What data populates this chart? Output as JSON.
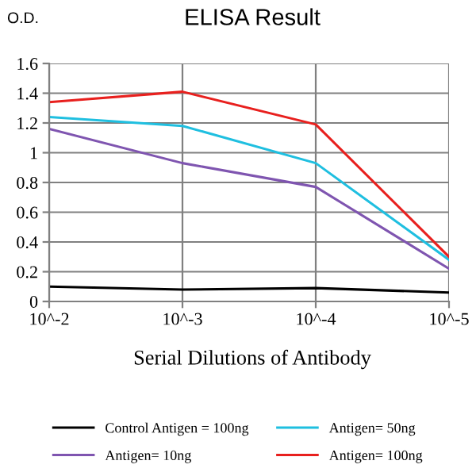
{
  "chart_data": {
    "type": "line",
    "title": "ELISA Result",
    "ylabel": "O.D.",
    "xlabel": "Serial Dilutions of Antibody",
    "categories": [
      "10^-2",
      "10^-3",
      "10^-4",
      "10^-5"
    ],
    "series": [
      {
        "name": "Control Antigen = 100ng",
        "color": "#000000",
        "values": [
          0.1,
          0.08,
          0.09,
          0.06
        ]
      },
      {
        "name": "Antigen= 10ng",
        "color": "#7f55b0",
        "values": [
          1.16,
          0.93,
          0.77,
          0.22
        ]
      },
      {
        "name": "Antigen= 50ng",
        "color": "#1fbfe0",
        "values": [
          1.24,
          1.18,
          0.93,
          0.28
        ]
      },
      {
        "name": "Antigen= 100ng",
        "color": "#e8201e",
        "values": [
          1.34,
          1.41,
          1.19,
          0.3
        ]
      }
    ],
    "ylim": [
      0,
      1.6
    ],
    "yticks": [
      0,
      0.2,
      0.4,
      0.6,
      0.8,
      1,
      1.2,
      1.4,
      1.6
    ],
    "grid": true,
    "legend": "bottom",
    "marker": "none",
    "line_style": "solid"
  }
}
